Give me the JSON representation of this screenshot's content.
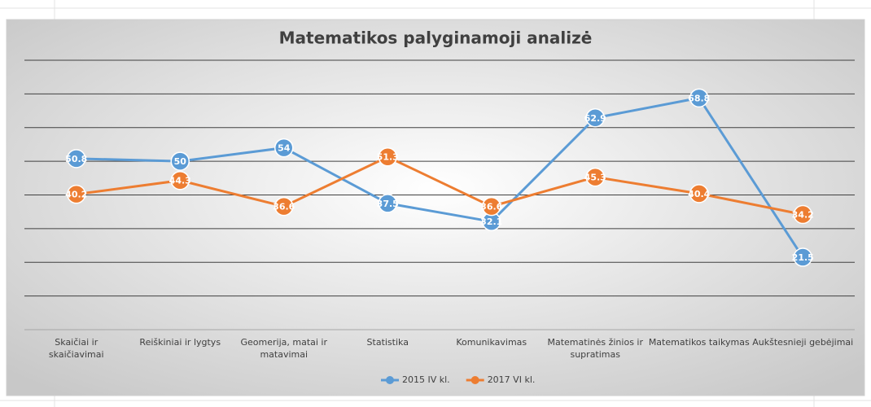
{
  "chart_data": {
    "type": "line",
    "title": "Matematikos palyginamoji analizė",
    "categories": [
      "Skaičiai ir skaičiavimai",
      "Reiškiniai ir lygtys",
      "Geomerija, matai ir matavimai",
      "Statistika",
      "Komunikavimas",
      "Matematinės žinios ir supratimas",
      "Matematikos taikymas",
      "Aukštesnieji gebėjimai"
    ],
    "series": [
      {
        "name": "2015 IV kl.",
        "color": "#5b9bd5",
        "values": [
          50.8,
          50,
          54,
          37.5,
          32.1,
          62.9,
          68.8,
          21.5
        ]
      },
      {
        "name": "2017 VI kl.",
        "color": "#ed7d31",
        "values": [
          40.2,
          44.3,
          36.6,
          51.3,
          36.6,
          45.3,
          40.4,
          34.2
        ]
      }
    ],
    "ylim": [
      0,
      80
    ],
    "yticks": [
      0,
      10,
      20,
      30,
      40,
      50,
      60,
      70,
      80
    ],
    "grid": true,
    "legend": "bottom"
  }
}
